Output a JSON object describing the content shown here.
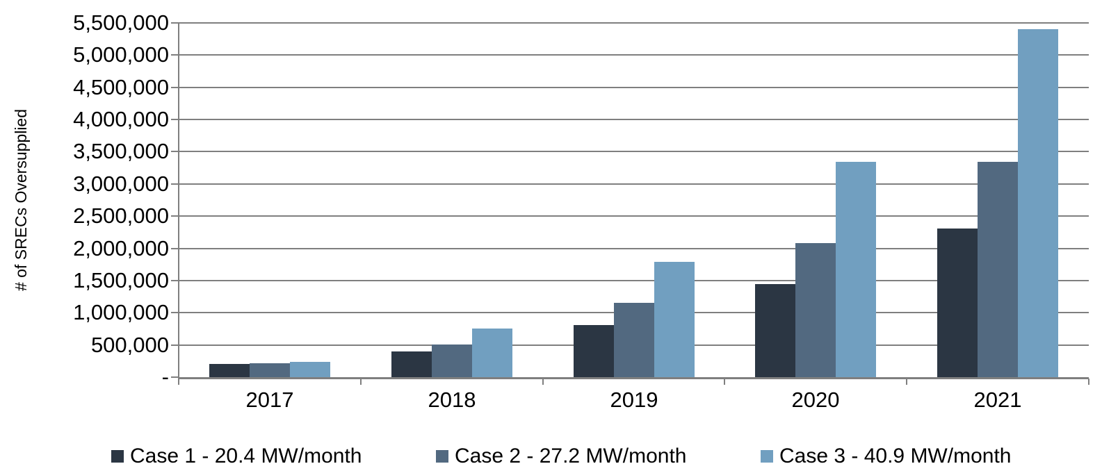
{
  "chart_data": {
    "type": "bar",
    "title": "",
    "xlabel": "",
    "ylabel": "# of SRECs Oversupplied",
    "categories": [
      "2017",
      "2018",
      "2019",
      "2020",
      "2021"
    ],
    "series": [
      {
        "name": "Case 1 - 20.4 MW/month",
        "color": "#2b3643",
        "values": [
          200000,
          400000,
          810000,
          1450000,
          2310000
        ]
      },
      {
        "name": "Case 2 - 27.2 MW/month",
        "color": "#526980",
        "values": [
          220000,
          510000,
          1150000,
          2080000,
          3340000
        ]
      },
      {
        "name": "Case 3 - 40.9 MW/month",
        "color": "#719fc0",
        "values": [
          240000,
          760000,
          1790000,
          3340000,
          5400000
        ]
      }
    ],
    "ylim": [
      0,
      5500000
    ],
    "ytick_step": 500000,
    "ytick_labels": [
      "-",
      "500,000",
      "1,000,000",
      "1,500,000",
      "2,000,000",
      "2,500,000",
      "3,000,000",
      "3,500,000",
      "4,000,000",
      "4,500,000",
      "5,000,000",
      "5,500,000"
    ],
    "grid": true,
    "legend_position": "bottom",
    "colors": {
      "gridline": "#7f7f7f",
      "axis": "#7f7f7f",
      "text": "#000000",
      "background": "#ffffff"
    }
  }
}
